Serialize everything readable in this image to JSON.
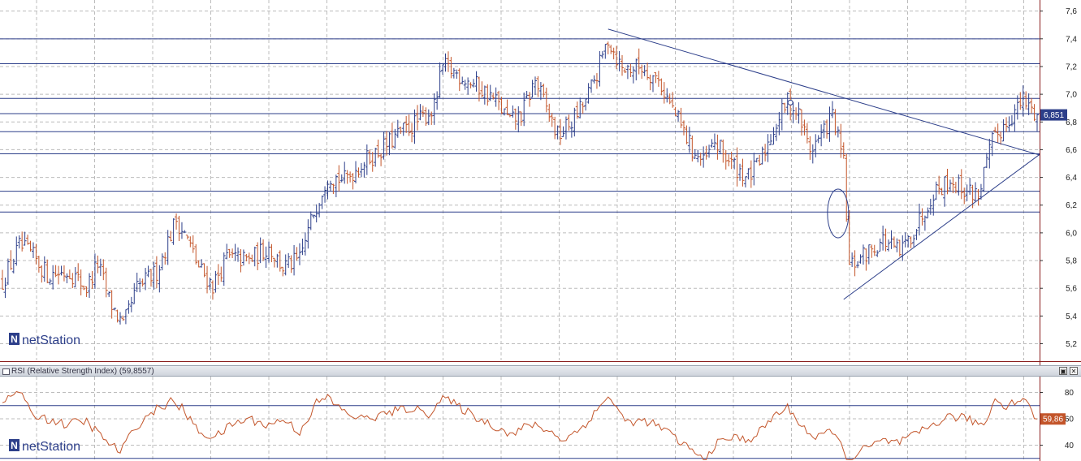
{
  "brand": {
    "name": "netStation",
    "logo_letter": "N"
  },
  "chart_data": [
    {
      "type": "ohlc",
      "title": "",
      "y_ticks": [
        "7,6",
        "7,4",
        "7,2",
        "7,0",
        "6,8",
        "6,6",
        "6,4",
        "6,2",
        "6,0",
        "5,8",
        "5,6",
        "5,4",
        "5,2"
      ],
      "y_tick_values": [
        7.6,
        7.4,
        7.2,
        7.0,
        6.8,
        6.6,
        6.4,
        6.2,
        6.0,
        5.8,
        5.6,
        5.4,
        5.2
      ],
      "ylim": [
        5.08,
        7.68
      ],
      "grid": true,
      "last_price_label": "6,851",
      "last_price": 6.851,
      "bar_count": 370,
      "close_keypoints": [
        [
          0,
          5.65
        ],
        [
          6,
          5.9
        ],
        [
          10,
          5.85
        ],
        [
          16,
          5.7
        ],
        [
          24,
          5.72
        ],
        [
          30,
          5.6
        ],
        [
          34,
          5.78
        ],
        [
          38,
          5.52
        ],
        [
          43,
          5.32
        ],
        [
          48,
          5.6
        ],
        [
          55,
          5.72
        ],
        [
          62,
          6.1
        ],
        [
          66,
          5.95
        ],
        [
          70,
          5.75
        ],
        [
          75,
          5.62
        ],
        [
          80,
          5.82
        ],
        [
          88,
          5.8
        ],
        [
          95,
          5.9
        ],
        [
          100,
          5.75
        ],
        [
          106,
          5.8
        ],
        [
          111,
          6.15
        ],
        [
          116,
          6.42
        ],
        [
          122,
          6.38
        ],
        [
          128,
          6.5
        ],
        [
          135,
          6.6
        ],
        [
          142,
          6.72
        ],
        [
          148,
          6.8
        ],
        [
          154,
          6.9
        ],
        [
          157,
          7.2
        ],
        [
          162,
          7.15
        ],
        [
          170,
          7.05
        ],
        [
          176,
          6.95
        ],
        [
          181,
          6.8
        ],
        [
          185,
          6.85
        ],
        [
          190,
          7.1
        ],
        [
          194,
          6.9
        ],
        [
          198,
          6.7
        ],
        [
          203,
          6.8
        ],
        [
          208,
          6.95
        ],
        [
          212,
          7.15
        ],
        [
          216,
          7.4
        ],
        [
          221,
          7.18
        ],
        [
          228,
          7.2
        ],
        [
          234,
          7.1
        ],
        [
          240,
          6.85
        ],
        [
          246,
          6.6
        ],
        [
          250,
          6.5
        ],
        [
          254,
          6.65
        ],
        [
          260,
          6.5
        ],
        [
          266,
          6.4
        ],
        [
          270,
          6.5
        ],
        [
          275,
          6.75
        ],
        [
          280,
          6.95
        ],
        [
          284,
          6.85
        ],
        [
          288,
          6.6
        ],
        [
          292,
          6.7
        ],
        [
          296,
          6.85
        ],
        [
          300,
          6.5
        ],
        [
          302,
          5.75
        ],
        [
          308,
          5.85
        ],
        [
          314,
          5.95
        ],
        [
          320,
          5.85
        ],
        [
          326,
          6.05
        ],
        [
          332,
          6.3
        ],
        [
          338,
          6.38
        ],
        [
          344,
          6.3
        ],
        [
          348,
          6.28
        ],
        [
          353,
          6.65
        ],
        [
          358,
          6.8
        ],
        [
          364,
          6.95
        ],
        [
          369,
          6.85
        ]
      ],
      "overlays": {
        "horizontal_levels": [
          7.4,
          7.22,
          6.97,
          6.86,
          6.73,
          6.57,
          6.3,
          6.15
        ],
        "trendline_down": {
          "from": [
            216,
            7.47
          ],
          "to": [
            369,
            6.56
          ]
        },
        "trendline_up": {
          "from": [
            300,
            5.52
          ],
          "to": [
            369,
            6.57
          ]
        },
        "ellipse_marker": {
          "x": 298,
          "y": 6.14
        },
        "small_circle_marker": {
          "x": 281,
          "y": 6.94
        }
      },
      "colors": {
        "up": "#2d3f8a",
        "down": "#c3552a",
        "grid": "#bcbcbc",
        "levels": "#2d3f8a",
        "axis": "#8a1c1c",
        "price_label_bg": "#2d3f8a"
      }
    },
    {
      "type": "line",
      "title": "RSI (Relative Strength Index) (59,8557)",
      "y_ticks": [
        "80",
        "60",
        "40"
      ],
      "y_tick_values": [
        80,
        60,
        40
      ],
      "ylim": [
        28,
        92
      ],
      "grid": true,
      "last_value_label": "59,86",
      "last_value": 59.86,
      "levels": [
        70,
        30
      ],
      "rsi_keypoints": [
        [
          0,
          72
        ],
        [
          6,
          82
        ],
        [
          10,
          64
        ],
        [
          16,
          60
        ],
        [
          22,
          56
        ],
        [
          30,
          58
        ],
        [
          36,
          45
        ],
        [
          42,
          35
        ],
        [
          48,
          55
        ],
        [
          54,
          66
        ],
        [
          60,
          73
        ],
        [
          64,
          68
        ],
        [
          70,
          50
        ],
        [
          76,
          46
        ],
        [
          82,
          56
        ],
        [
          88,
          60
        ],
        [
          95,
          55
        ],
        [
          100,
          60
        ],
        [
          106,
          50
        ],
        [
          112,
          72
        ],
        [
          116,
          76
        ],
        [
          122,
          65
        ],
        [
          128,
          60
        ],
        [
          134,
          62
        ],
        [
          140,
          66
        ],
        [
          146,
          68
        ],
        [
          152,
          64
        ],
        [
          157,
          76
        ],
        [
          162,
          70
        ],
        [
          170,
          60
        ],
        [
          176,
          54
        ],
        [
          182,
          48
        ],
        [
          188,
          56
        ],
        [
          194,
          52
        ],
        [
          200,
          44
        ],
        [
          206,
          52
        ],
        [
          212,
          66
        ],
        [
          216,
          78
        ],
        [
          222,
          58
        ],
        [
          230,
          58
        ],
        [
          236,
          52
        ],
        [
          240,
          45
        ],
        [
          246,
          36
        ],
        [
          250,
          28
        ],
        [
          254,
          40
        ],
        [
          260,
          46
        ],
        [
          266,
          44
        ],
        [
          270,
          50
        ],
        [
          276,
          64
        ],
        [
          280,
          68
        ],
        [
          284,
          58
        ],
        [
          290,
          44
        ],
        [
          296,
          52
        ],
        [
          300,
          35
        ],
        [
          302,
          28
        ],
        [
          308,
          38
        ],
        [
          314,
          43
        ],
        [
          320,
          42
        ],
        [
          326,
          48
        ],
        [
          332,
          56
        ],
        [
          338,
          62
        ],
        [
          344,
          60
        ],
        [
          350,
          55
        ],
        [
          354,
          75
        ],
        [
          358,
          70
        ],
        [
          364,
          76
        ],
        [
          369,
          59.86
        ]
      ],
      "colors": {
        "line": "#c3552a",
        "grid": "#bcbcbc",
        "levels": "#2d3f8a",
        "value_label_bg": "#c3552a"
      }
    }
  ],
  "indicator_panel": {
    "title": "RSI (Relative Strength Index) (59,8557)",
    "maximize_glyph": "▣",
    "close_glyph": "✕"
  }
}
